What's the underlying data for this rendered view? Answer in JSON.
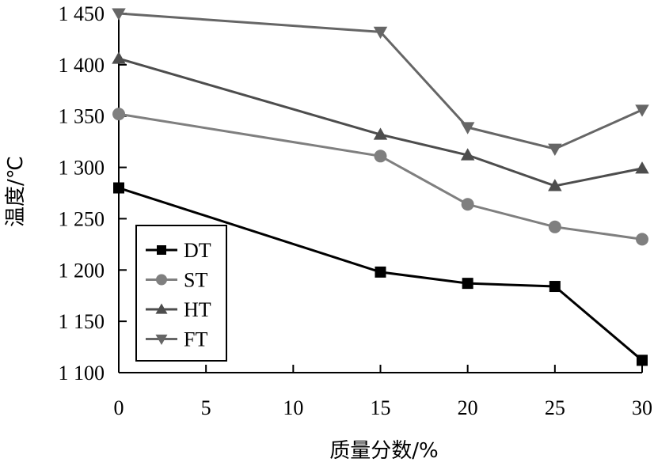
{
  "chart_data": {
    "type": "line",
    "xlabel": "质量分数/%",
    "ylabel": "温度/℃",
    "xlim": [
      0,
      30
    ],
    "ylim": [
      1100,
      1450
    ],
    "xticks": [
      0,
      5,
      10,
      15,
      20,
      25,
      30
    ],
    "xtick_labels": [
      "0",
      "5",
      "10",
      "15",
      "20",
      "25",
      "30"
    ],
    "yticks": [
      1100,
      1150,
      1200,
      1250,
      1300,
      1350,
      1400,
      1450
    ],
    "ytick_labels": [
      "1 100",
      "1 150",
      "1 200",
      "1 250",
      "1 300",
      "1 350",
      "1 400",
      "1 450"
    ],
    "grid": false,
    "legend_position": "bottom-left",
    "x": [
      0,
      15,
      20,
      25,
      30
    ],
    "series": [
      {
        "name": "DT",
        "marker": "square",
        "color": "#000000",
        "values": [
          1280,
          1198,
          1187,
          1184,
          1112
        ]
      },
      {
        "name": "ST",
        "marker": "circle",
        "color": "#7f7f7f",
        "values": [
          1352,
          1311,
          1264,
          1242,
          1230
        ]
      },
      {
        "name": "HT",
        "marker": "triangle-up",
        "color": "#4d4d4d",
        "values": [
          1406,
          1332,
          1312,
          1282,
          1299
        ]
      },
      {
        "name": "FT",
        "marker": "triangle-down",
        "color": "#666666",
        "values": [
          1450,
          1432,
          1339,
          1318,
          1356
        ]
      }
    ]
  }
}
